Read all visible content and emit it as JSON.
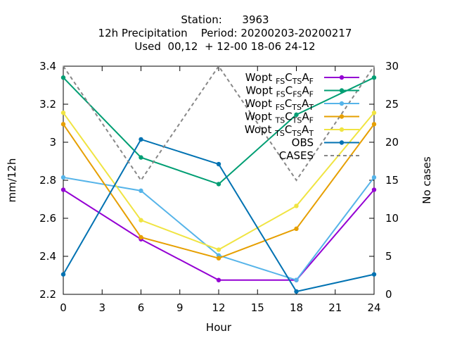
{
  "chart_data": {
    "type": "line",
    "title_lines": [
      "Station:      3963",
      "12h Precipitation    Period: 20200203-20200217",
      "Used  00,12  + 12-00 18-06 24-12"
    ],
    "xlabel": "Hour",
    "ylabel": "mm/12h",
    "y2label": "No cases",
    "xlim": [
      0,
      24
    ],
    "ylim": [
      2.2,
      3.4
    ],
    "y2lim": [
      0,
      30
    ],
    "x_ticks": [
      0,
      3,
      6,
      9,
      12,
      15,
      18,
      21,
      24
    ],
    "y_ticks": [
      2.2,
      2.4,
      2.6,
      2.8,
      3.0,
      3.2,
      3.4
    ],
    "y_tick_labels": [
      "2.2",
      "2.4",
      "2.6",
      "2.8",
      "3",
      "3.2",
      "3.4"
    ],
    "y2_ticks": [
      0,
      5,
      10,
      15,
      20,
      25,
      30
    ],
    "grid": false,
    "legend_position": "top-right",
    "series": [
      {
        "name": [
          "Wopt ",
          "FS",
          "C",
          "TS",
          "A",
          "F"
        ],
        "color": "#9400d3",
        "axis": "y",
        "dash": false,
        "x": [
          0,
          6,
          12,
          18,
          24
        ],
        "values": [
          2.75,
          2.49,
          2.275,
          2.275,
          2.75
        ]
      },
      {
        "name": [
          "Wopt ",
          "FS",
          "C",
          "FS",
          "A",
          "F"
        ],
        "color": "#009e73",
        "axis": "y",
        "dash": false,
        "x": [
          0,
          6,
          12,
          18,
          24
        ],
        "values": [
          3.34,
          2.92,
          2.78,
          3.145,
          3.34
        ]
      },
      {
        "name": [
          "Wopt ",
          "FS",
          "C",
          "TS",
          "A",
          "T"
        ],
        "color": "#56b4e9",
        "axis": "y",
        "dash": false,
        "x": [
          0,
          6,
          12,
          18,
          24
        ],
        "values": [
          2.815,
          2.745,
          2.405,
          2.275,
          2.815
        ]
      },
      {
        "name": [
          "Wopt ",
          "TS",
          "C",
          "TS",
          "A",
          "F"
        ],
        "color": "#e69f00",
        "axis": "y",
        "dash": false,
        "x": [
          0,
          6,
          12,
          18,
          24
        ],
        "values": [
          3.095,
          2.5,
          2.39,
          2.545,
          3.095
        ]
      },
      {
        "name": [
          "Wopt ",
          "TS",
          "C",
          "TS",
          "A",
          "T"
        ],
        "color": "#f0e442",
        "axis": "y",
        "dash": false,
        "x": [
          0,
          6,
          12,
          18,
          24
        ],
        "values": [
          3.155,
          2.59,
          2.435,
          2.665,
          3.155
        ]
      },
      {
        "name": [
          "OBS"
        ],
        "color": "#0072b2",
        "axis": "y",
        "dash": false,
        "x": [
          0,
          6,
          12,
          18,
          24
        ],
        "values": [
          2.305,
          3.015,
          2.885,
          2.215,
          2.305
        ]
      },
      {
        "name": [
          "CASES"
        ],
        "color": "#888888",
        "axis": "y2",
        "dash": true,
        "x": [
          0,
          6,
          12,
          18,
          24
        ],
        "values": [
          30,
          15,
          30,
          15,
          30
        ]
      }
    ]
  }
}
